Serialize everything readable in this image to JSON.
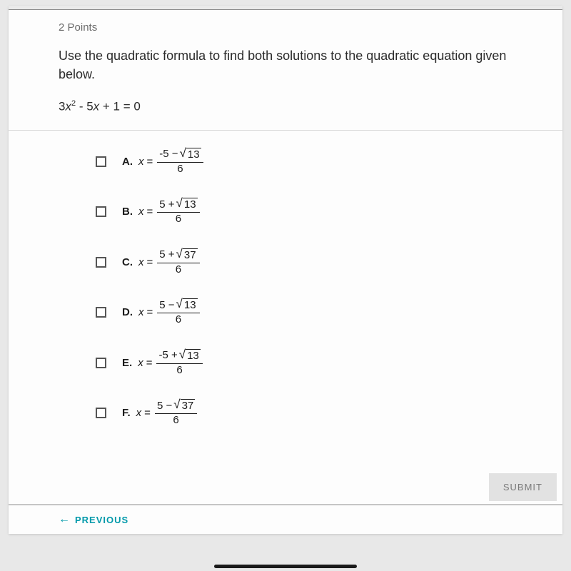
{
  "points_label": "2 Points",
  "question": "Use the quadratic formula to find both solutions to the quadratic equation given below.",
  "equation": {
    "lhs_a": "3",
    "var": "x",
    "exp": "2",
    "mid": " - 5",
    "var2": "x",
    "tail": " + 1 = 0"
  },
  "choices": [
    {
      "letter": "A.",
      "num_lead": "-5 − ",
      "rad": "13",
      "den": "6"
    },
    {
      "letter": "B.",
      "num_lead": "5 + ",
      "rad": "13",
      "den": "6"
    },
    {
      "letter": "C.",
      "num_lead": "5 + ",
      "rad": "37",
      "den": "6"
    },
    {
      "letter": "D.",
      "num_lead": "5 − ",
      "rad": "13",
      "den": "6"
    },
    {
      "letter": "E.",
      "num_lead": "-5 + ",
      "rad": "13",
      "den": "6"
    },
    {
      "letter": "F.",
      "num_lead": "5 − ",
      "rad": "37",
      "den": "6"
    }
  ],
  "submit_label": "SUBMIT",
  "previous_label": "PREVIOUS",
  "colors": {
    "page_bg": "#b8b8b8",
    "card_bg": "#fdfdfd",
    "muted_text": "#6a6a6a",
    "text": "#2b2b2b",
    "accent": "#0099aa",
    "submit_bg": "#e2e2e2",
    "submit_text": "#7a7a7a"
  }
}
